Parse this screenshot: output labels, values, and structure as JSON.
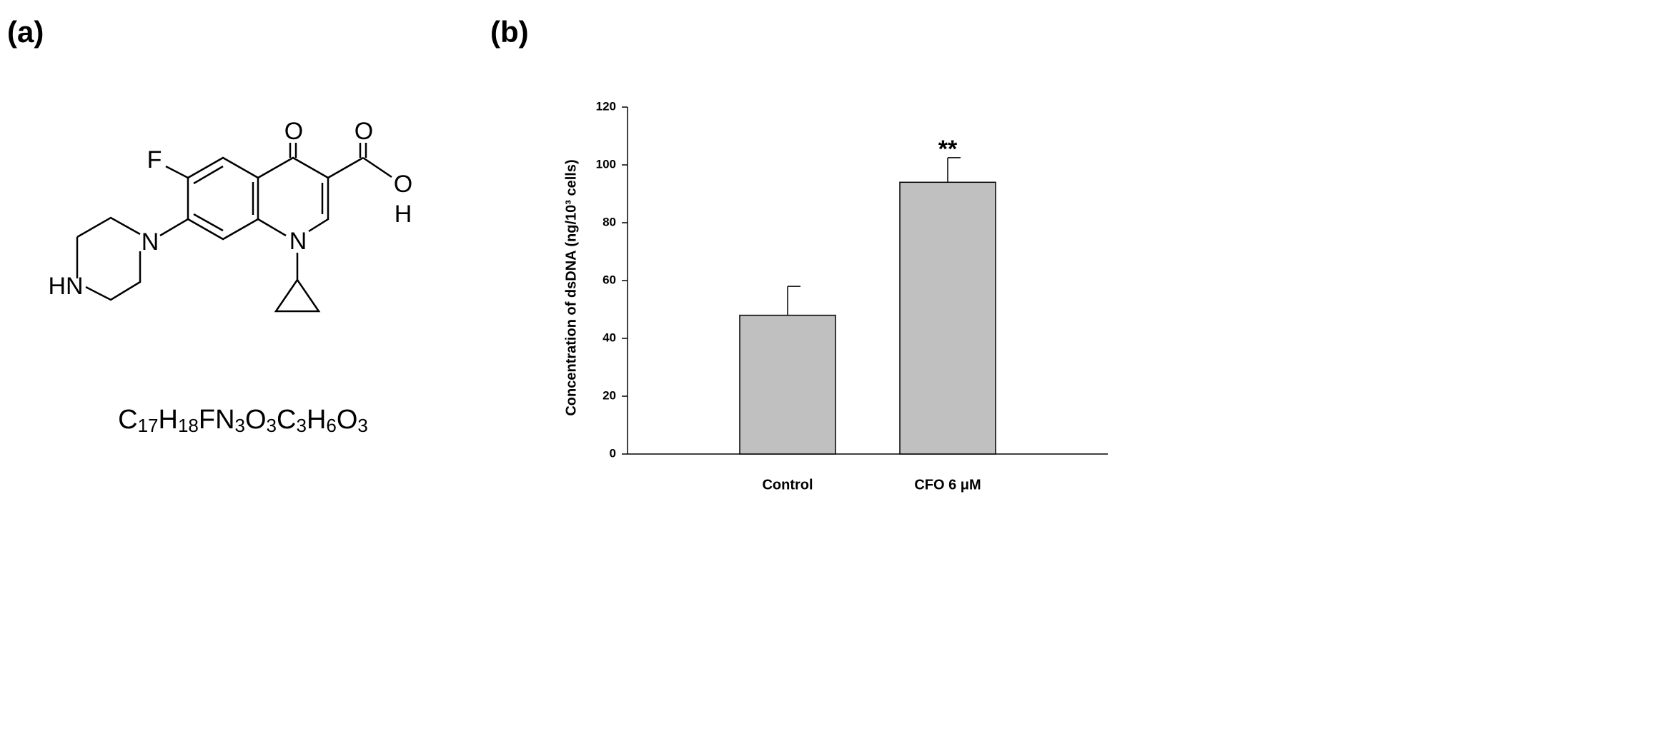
{
  "structure": {
    "panel_label": "(a)",
    "atoms": [
      "F",
      "O",
      "O",
      "O",
      "H",
      "N",
      "N",
      "HN"
    ],
    "formula": [
      {
        "text": "C",
        "sub": "17"
      },
      {
        "text": "H",
        "sub": "18"
      },
      {
        "text": "FN",
        "sub": "3"
      },
      {
        "text": "O",
        "sub": "3"
      },
      {
        "text": "C",
        "sub": "3"
      },
      {
        "text": "H",
        "sub": "6"
      },
      {
        "text": "O",
        "sub": "3"
      }
    ]
  },
  "chart_data": {
    "type": "bar",
    "panel_label": "(b)",
    "ylabel": "Concentration of dsDNA (ng/10³ cells)",
    "categories": [
      "Control",
      "CFO 6 μM"
    ],
    "values": [
      48,
      94
    ],
    "errors": [
      10,
      8.5
    ],
    "color": "#c0c0c0",
    "ylim": [
      0,
      120
    ],
    "yticks": [
      0,
      20,
      40,
      60,
      80,
      100,
      120
    ],
    "annotations": [
      "**"
    ]
  }
}
